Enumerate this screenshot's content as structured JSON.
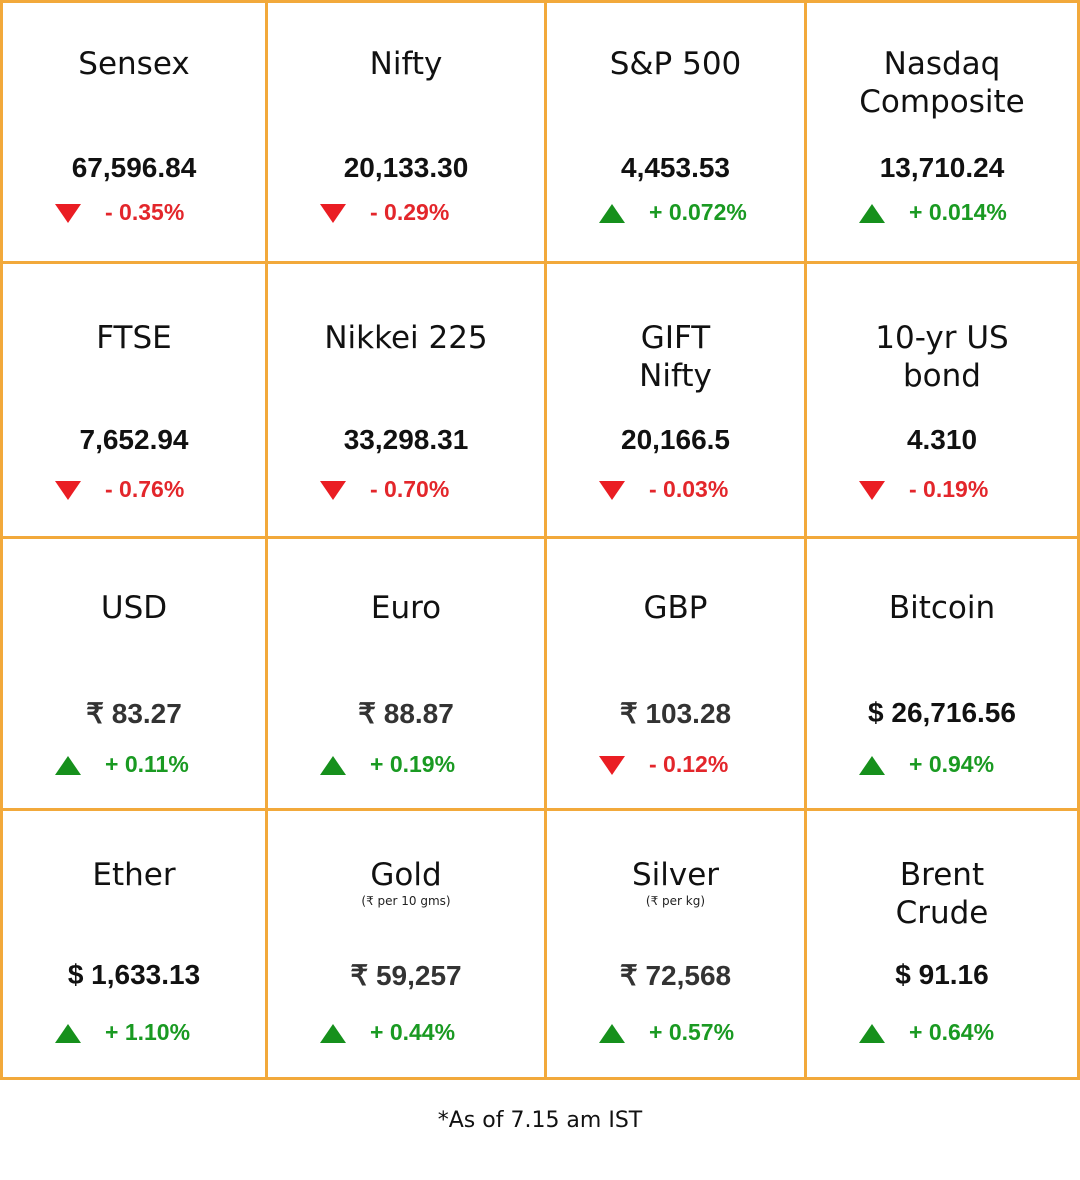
{
  "colors": {
    "border": "#f2a93b",
    "up": "#1a9a22",
    "down": "#e3262b"
  },
  "cells": [
    {
      "title": "Sensex",
      "value": "67,596.84",
      "change": "- 0.35%",
      "direction": "down"
    },
    {
      "title": "Nifty",
      "value": "20,133.30",
      "change": "- 0.29%",
      "direction": "down"
    },
    {
      "title": "S&P 500",
      "value": "4,453.53",
      "change": "+ 0.072%",
      "direction": "up"
    },
    {
      "title": "Nasdaq\nComposite",
      "value": "13,710.24",
      "change": "+ 0.014%",
      "direction": "up"
    },
    {
      "title": "FTSE",
      "value": "7,652.94",
      "change": "- 0.76%",
      "direction": "down"
    },
    {
      "title": "Nikkei 225",
      "value": "33,298.31",
      "change": "- 0.70%",
      "direction": "down"
    },
    {
      "title": "GIFT\nNifty",
      "value": "20,166.5",
      "change": "- 0.03%",
      "direction": "down"
    },
    {
      "title": "10-yr US\nbond",
      "value": "4.310",
      "change": "- 0.19%",
      "direction": "down"
    },
    {
      "title": "USD",
      "value": "₹ 83.27",
      "change": "+ 0.11%",
      "direction": "up"
    },
    {
      "title": "Euro",
      "value": "₹ 88.87",
      "change": "+ 0.19%",
      "direction": "up"
    },
    {
      "title": "GBP",
      "value": "₹ 103.28",
      "change": "- 0.12%",
      "direction": "down"
    },
    {
      "title": "Bitcoin",
      "value": "$ 26,716.56",
      "change": "+ 0.94%",
      "direction": "up"
    },
    {
      "title": "Ether",
      "value": "$ 1,633.13",
      "change": "+ 1.10%",
      "direction": "up"
    },
    {
      "title": "Gold",
      "subtitle": "(₹ per 10 gms)",
      "value": "₹ 59,257",
      "change": "+ 0.44%",
      "direction": "up"
    },
    {
      "title": "Silver",
      "subtitle": "(₹ per kg)",
      "value": "₹ 72,568",
      "change": "+ 0.57%",
      "direction": "up"
    },
    {
      "title": "Brent\nCrude",
      "value": "$ 91.16",
      "change": "+ 0.64%",
      "direction": "up"
    }
  ],
  "footnote": "*As of 7.15 am IST"
}
